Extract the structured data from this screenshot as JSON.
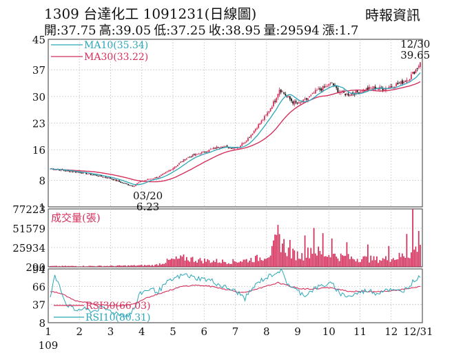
{
  "header": {
    "title": "1309  台達化工 1091231(日線圖)",
    "source": "時報資訊",
    "quote": [
      {
        "label": "開",
        "value": "37.75"
      },
      {
        "label": "高",
        "value": "39.05"
      },
      {
        "label": "低",
        "value": "37.25"
      },
      {
        "label": "收",
        "value": "38.95"
      },
      {
        "label": "量",
        "value": "29594"
      },
      {
        "label": "漲",
        "value": "1.7"
      }
    ]
  },
  "chart_data": [
    {
      "type": "candlestick",
      "panel": "price",
      "ylim": [
        1,
        45
      ],
      "yticks": [
        45,
        37,
        30,
        23,
        16,
        8,
        1
      ],
      "grid": true,
      "colors": {
        "up": "#d42f5b",
        "down": "#111111",
        "ma10": "#2aa6b8",
        "ma30": "#d42f5b"
      },
      "legend": [
        {
          "name": "MA10",
          "value": "35.34",
          "color": "#2aa6b8"
        },
        {
          "name": "MA30",
          "value": "33.22",
          "color": "#d42f5b"
        }
      ],
      "annotations": [
        {
          "label": "03/20",
          "value": "6.23",
          "x": 55
        },
        {
          "label": "12/30",
          "value": "39.65",
          "x": 246
        }
      ],
      "close_keypoints": [
        [
          0,
          11.0
        ],
        [
          10,
          10.5
        ],
        [
          20,
          10.0
        ],
        [
          30,
          9.3
        ],
        [
          40,
          8.5
        ],
        [
          48,
          7.3
        ],
        [
          55,
          6.5
        ],
        [
          60,
          7.6
        ],
        [
          66,
          8.3
        ],
        [
          72,
          8.8
        ],
        [
          78,
          10.2
        ],
        [
          84,
          11.8
        ],
        [
          90,
          13.6
        ],
        [
          96,
          14.6
        ],
        [
          102,
          15.3
        ],
        [
          108,
          16.2
        ],
        [
          114,
          17.0
        ],
        [
          120,
          16.5
        ],
        [
          126,
          16.8
        ],
        [
          132,
          19.0
        ],
        [
          138,
          22.0
        ],
        [
          144,
          25.0
        ],
        [
          150,
          29.0
        ],
        [
          153,
          32.0
        ],
        [
          158,
          30.0
        ],
        [
          162,
          28.5
        ],
        [
          166,
          28.0
        ],
        [
          172,
          29.5
        ],
        [
          178,
          31.5
        ],
        [
          184,
          32.5
        ],
        [
          188,
          33.5
        ],
        [
          192,
          31.5
        ],
        [
          198,
          30.5
        ],
        [
          204,
          31.0
        ],
        [
          210,
          31.8
        ],
        [
          216,
          32.3
        ],
        [
          222,
          32.0
        ],
        [
          228,
          32.8
        ],
        [
          234,
          33.5
        ],
        [
          240,
          35.0
        ],
        [
          245,
          37.5
        ],
        [
          247,
          38.95
        ]
      ],
      "days": 248
    },
    {
      "type": "bar",
      "panel": "volume",
      "title": "成交量(張)",
      "ylim": [
        290,
        77223
      ],
      "yticks": [
        77223,
        51579,
        25934,
        290
      ],
      "color": "#d42f5b",
      "volume_keypoints": [
        [
          0,
          1200
        ],
        [
          40,
          1500
        ],
        [
          70,
          2500
        ],
        [
          80,
          9000
        ],
        [
          90,
          12000
        ],
        [
          100,
          9000
        ],
        [
          110,
          8000
        ],
        [
          120,
          7000
        ],
        [
          130,
          9000
        ],
        [
          140,
          12000
        ],
        [
          148,
          20000
        ],
        [
          152,
          40000
        ],
        [
          160,
          18000
        ],
        [
          170,
          14000
        ],
        [
          175,
          26000
        ],
        [
          180,
          18000
        ],
        [
          190,
          15000
        ],
        [
          200,
          12000
        ],
        [
          210,
          11000
        ],
        [
          220,
          10000
        ],
        [
          230,
          12000
        ],
        [
          240,
          18000
        ],
        [
          247,
          29594
        ]
      ],
      "spikes": [
        {
          "x": 152,
          "value": 56000
        },
        {
          "x": 160,
          "value": 36000
        },
        {
          "x": 170,
          "value": 42000
        },
        {
          "x": 176,
          "value": 52000
        },
        {
          "x": 182,
          "value": 45000
        },
        {
          "x": 188,
          "value": 38000
        },
        {
          "x": 198,
          "value": 33000
        },
        {
          "x": 212,
          "value": 30000
        },
        {
          "x": 226,
          "value": 28000
        },
        {
          "x": 238,
          "value": 44000
        },
        {
          "x": 242,
          "value": 77223
        },
        {
          "x": 246,
          "value": 48000
        }
      ]
    },
    {
      "type": "line",
      "panel": "rsi",
      "ylim": [
        8,
        94
      ],
      "yticks": [
        94,
        66,
        37,
        8
      ],
      "legend": [
        {
          "name": "RSI30",
          "value": "66.03",
          "color": "#d42f5b"
        },
        {
          "name": "RSI10",
          "value": "80.31",
          "color": "#2aa6b8"
        }
      ],
      "rsi10_keypoints": [
        [
          0,
          50
        ],
        [
          3,
          82
        ],
        [
          6,
          70
        ],
        [
          10,
          40
        ],
        [
          16,
          28
        ],
        [
          22,
          30
        ],
        [
          28,
          26
        ],
        [
          34,
          32
        ],
        [
          40,
          27
        ],
        [
          46,
          22
        ],
        [
          52,
          20
        ],
        [
          56,
          30
        ],
        [
          60,
          55
        ],
        [
          66,
          62
        ],
        [
          72,
          58
        ],
        [
          78,
          72
        ],
        [
          84,
          80
        ],
        [
          90,
          85
        ],
        [
          96,
          80
        ],
        [
          102,
          78
        ],
        [
          108,
          75
        ],
        [
          114,
          67
        ],
        [
          120,
          62
        ],
        [
          126,
          55
        ],
        [
          130,
          47
        ],
        [
          134,
          60
        ],
        [
          140,
          75
        ],
        [
          146,
          82
        ],
        [
          150,
          88
        ],
        [
          154,
          92
        ],
        [
          158,
          72
        ],
        [
          164,
          60
        ],
        [
          170,
          52
        ],
        [
          176,
          62
        ],
        [
          182,
          68
        ],
        [
          188,
          70
        ],
        [
          194,
          54
        ],
        [
          200,
          50
        ],
        [
          206,
          56
        ],
        [
          212,
          60
        ],
        [
          218,
          55
        ],
        [
          224,
          62
        ],
        [
          230,
          58
        ],
        [
          236,
          60
        ],
        [
          240,
          68
        ],
        [
          244,
          78
        ],
        [
          247,
          80.31
        ]
      ],
      "rsi30_keypoints": [
        [
          0,
          58
        ],
        [
          8,
          54
        ],
        [
          16,
          44
        ],
        [
          24,
          40
        ],
        [
          32,
          37
        ],
        [
          40,
          36
        ],
        [
          48,
          35
        ],
        [
          56,
          38
        ],
        [
          64,
          48
        ],
        [
          72,
          54
        ],
        [
          80,
          60
        ],
        [
          88,
          66
        ],
        [
          96,
          68
        ],
        [
          104,
          67
        ],
        [
          112,
          64
        ],
        [
          120,
          60
        ],
        [
          128,
          56
        ],
        [
          136,
          60
        ],
        [
          144,
          66
        ],
        [
          152,
          72
        ],
        [
          160,
          66
        ],
        [
          168,
          62
        ],
        [
          176,
          62
        ],
        [
          184,
          64
        ],
        [
          192,
          62
        ],
        [
          200,
          58
        ],
        [
          208,
          58
        ],
        [
          216,
          58
        ],
        [
          224,
          58
        ],
        [
          232,
          60
        ],
        [
          240,
          63
        ],
        [
          247,
          66.03
        ]
      ]
    }
  ],
  "x_axis": {
    "labels": [
      "1",
      "2",
      "3",
      "4",
      "5",
      "6",
      "7",
      "8",
      "9",
      "10",
      "11",
      "12",
      "12/31"
    ],
    "sublabel": "109"
  }
}
